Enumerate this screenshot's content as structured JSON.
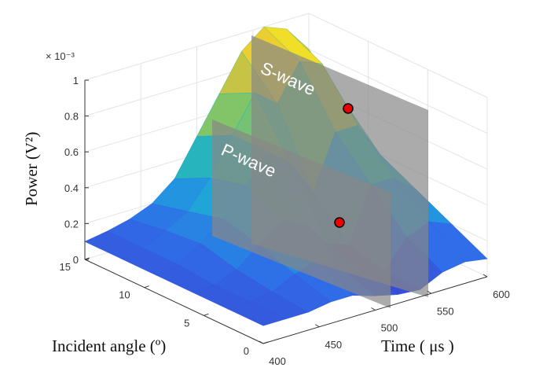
{
  "chart_data": {
    "type": "surface",
    "title": "",
    "xlabel": "Time ( μs )",
    "ylabel": "Incident angle (º)",
    "zlabel": "Power (V²)",
    "z_exponent_label": "× 10⁻³",
    "xlim": [
      400,
      600
    ],
    "ylim": [
      0,
      15
    ],
    "zlim": [
      0,
      1
    ],
    "x_ticks": [
      "400",
      "450",
      "500",
      "550",
      "600"
    ],
    "y_ticks": [
      "0",
      "5",
      "10",
      "15"
    ],
    "z_ticks": [
      "0",
      "0.2",
      "0.4",
      "0.6",
      "0.8",
      "1"
    ],
    "times": [
      400,
      420,
      440,
      460,
      480,
      500,
      520,
      540,
      560,
      580,
      600
    ],
    "angles": [
      0,
      3,
      6,
      9,
      12,
      15
    ],
    "values_e-3": [
      [
        0.1,
        0.1,
        0.1,
        0.12,
        0.12,
        0.08,
        0.05,
        0.04,
        0.1,
        0.12,
        0.1
      ],
      [
        0.1,
        0.1,
        0.12,
        0.18,
        0.22,
        0.15,
        0.08,
        0.05,
        0.2,
        0.25,
        0.2
      ],
      [
        0.1,
        0.1,
        0.15,
        0.25,
        0.35,
        0.3,
        0.15,
        0.1,
        0.4,
        0.4,
        0.3
      ],
      [
        0.1,
        0.12,
        0.2,
        0.3,
        0.45,
        0.6,
        0.5,
        0.3,
        0.6,
        0.6,
        0.4
      ],
      [
        0.1,
        0.12,
        0.18,
        0.25,
        0.4,
        0.6,
        0.8,
        0.7,
        0.9,
        0.85,
        0.6
      ],
      [
        0.1,
        0.12,
        0.15,
        0.2,
        0.3,
        0.5,
        0.7,
        0.9,
        1.0,
        0.95,
        0.8
      ]
    ],
    "annotations": [
      {
        "label": "S-wave",
        "marker_value_e-3": 0.83
      },
      {
        "label": "P-wave",
        "marker_value_e-3": 0.2
      }
    ],
    "colormap": [
      "#3b3fd0",
      "#2f6ee8",
      "#1fa2dc",
      "#2bbcb0",
      "#8cc560",
      "#e6c237",
      "#f8f51e"
    ]
  }
}
